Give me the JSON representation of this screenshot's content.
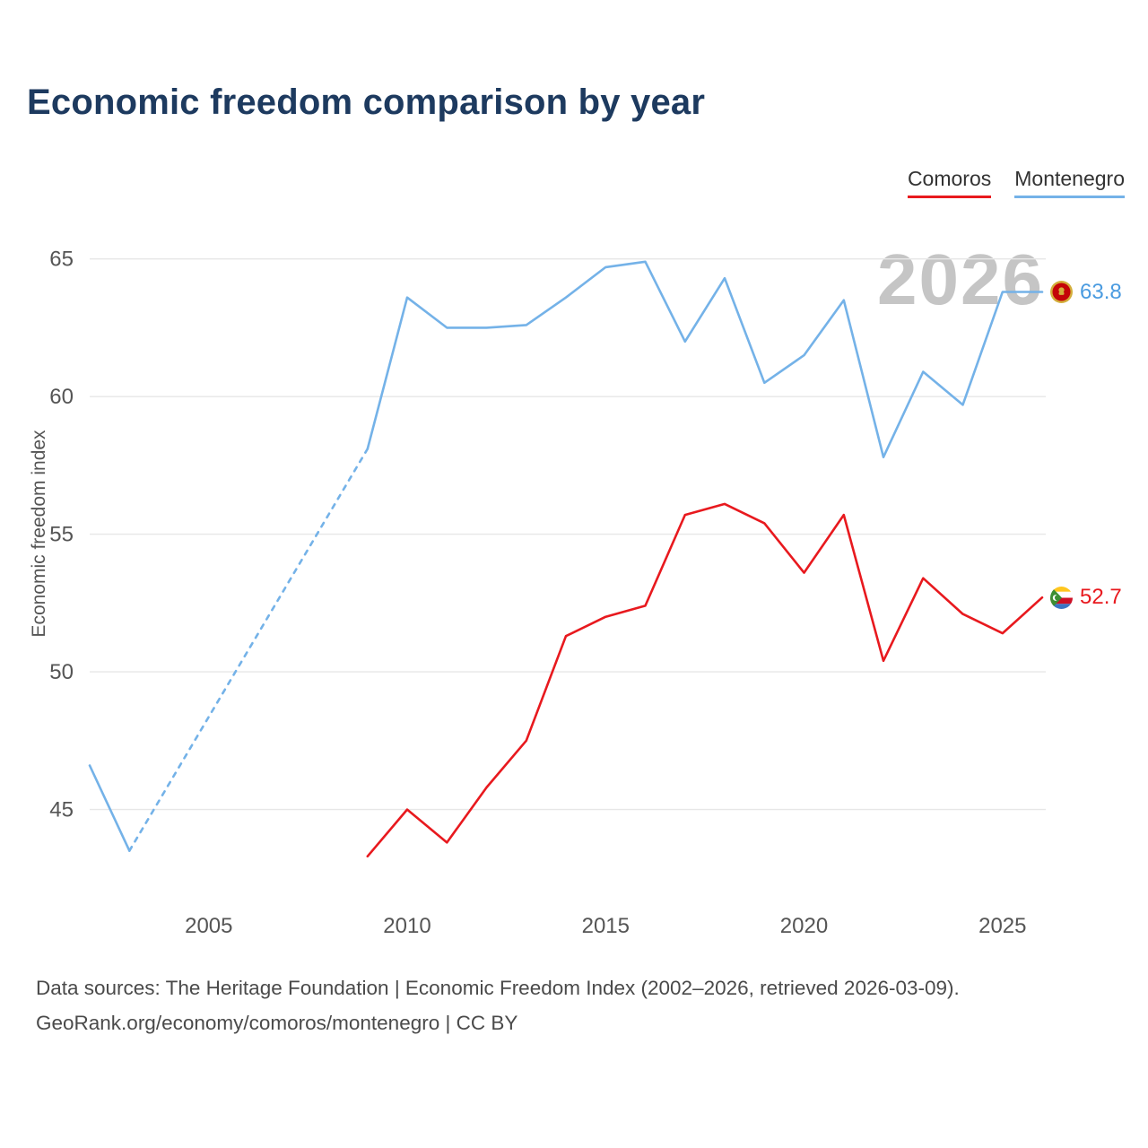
{
  "page": {
    "title": "Economic freedom comparison by year",
    "watermark": "2026",
    "footer_line1": "Data sources: The Heritage Foundation | Economic Freedom Index (2002–2026, retrieved 2026-03-09).",
    "footer_line2": "GeoRank.org/economy/comoros/montenegro | CC BY"
  },
  "legend": {
    "items": [
      {
        "label": "Comoros",
        "color": "#e8191e"
      },
      {
        "label": "Montenegro",
        "color": "#74b2e8"
      }
    ]
  },
  "chart_data": {
    "type": "line",
    "title": "Economic freedom comparison by year",
    "xlabel": "",
    "ylabel": "Economic freedom index",
    "xlim": [
      2002,
      2026
    ],
    "ylim": [
      41.5,
      66
    ],
    "xticks": [
      2005,
      2010,
      2015,
      2020,
      2025
    ],
    "yticks": [
      45,
      50,
      55,
      60,
      65
    ],
    "grid": "horizontal",
    "legend_position": "top-right",
    "series": [
      {
        "name": "Montenegro",
        "color": "#74b2e8",
        "end_label": "63.8",
        "end_value_color": "#4a9be0",
        "dashed_gap": [
          2003,
          2009
        ],
        "points": [
          [
            2002,
            46.6
          ],
          [
            2003,
            43.5
          ],
          [
            2009,
            58.1
          ],
          [
            2010,
            63.6
          ],
          [
            2011,
            62.5
          ],
          [
            2012,
            62.5
          ],
          [
            2013,
            62.6
          ],
          [
            2014,
            63.6
          ],
          [
            2015,
            64.7
          ],
          [
            2016,
            64.9
          ],
          [
            2017,
            62.0
          ],
          [
            2018,
            64.3
          ],
          [
            2019,
            60.5
          ],
          [
            2020,
            61.5
          ],
          [
            2021,
            63.5
          ],
          [
            2022,
            57.8
          ],
          [
            2023,
            60.9
          ],
          [
            2024,
            59.7
          ],
          [
            2025,
            63.8
          ],
          [
            2026,
            63.8
          ]
        ]
      },
      {
        "name": "Comoros",
        "color": "#e8191e",
        "end_label": "52.7",
        "end_value_color": "#e8191e",
        "points": [
          [
            2009,
            43.3
          ],
          [
            2010,
            45.0
          ],
          [
            2011,
            43.8
          ],
          [
            2012,
            45.8
          ],
          [
            2013,
            47.5
          ],
          [
            2014,
            51.3
          ],
          [
            2015,
            52.0
          ],
          [
            2016,
            52.4
          ],
          [
            2017,
            55.7
          ],
          [
            2018,
            56.1
          ],
          [
            2019,
            55.4
          ],
          [
            2020,
            53.6
          ],
          [
            2021,
            55.7
          ],
          [
            2022,
            50.4
          ],
          [
            2023,
            53.4
          ],
          [
            2024,
            52.1
          ],
          [
            2025,
            51.4
          ],
          [
            2026,
            52.7
          ]
        ]
      }
    ]
  }
}
